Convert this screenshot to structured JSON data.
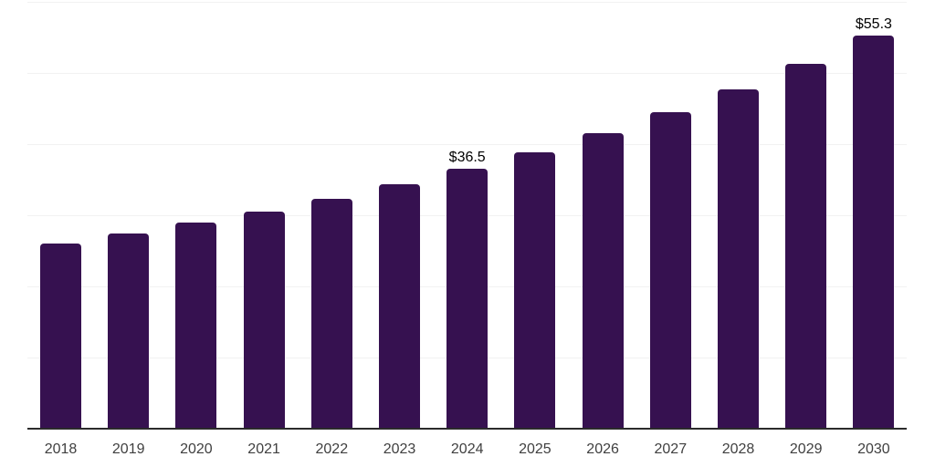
{
  "chart_data": {
    "type": "bar",
    "title": "",
    "xlabel": "",
    "ylabel": "",
    "categories": [
      "2018",
      "2019",
      "2020",
      "2021",
      "2022",
      "2023",
      "2024",
      "2025",
      "2026",
      "2027",
      "2028",
      "2029",
      "2030"
    ],
    "values": [
      26.0,
      27.4,
      29.0,
      30.5,
      32.3,
      34.3,
      36.5,
      38.9,
      41.6,
      44.5,
      47.7,
      51.3,
      55.3
    ],
    "data_labels": [
      "",
      "",
      "",
      "",
      "",
      "",
      "$36.5",
      "",
      "",
      "",
      "",
      "",
      "$55.3"
    ],
    "ylim": [
      0,
      60
    ],
    "gridline_step": 10,
    "grid": "horizontal-only",
    "legend": "none",
    "colors": {
      "bar": "#361150",
      "gridline": "#f2f2f2",
      "axis": "#2b2b2b",
      "tick_label": "#404040",
      "data_label": "#000000",
      "background": "#ffffff"
    }
  }
}
